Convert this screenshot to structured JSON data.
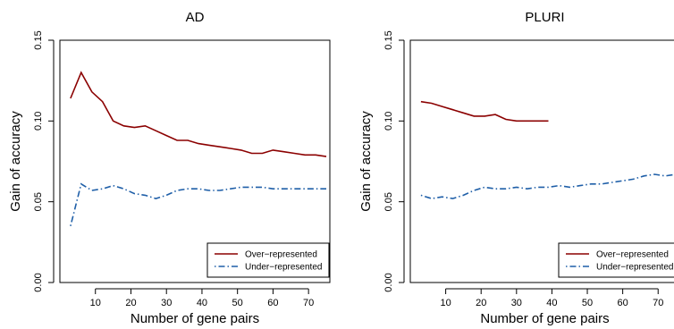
{
  "chart_data": [
    {
      "type": "line",
      "title": "AD",
      "xlabel": "Number of gene pairs",
      "ylabel": "Gain of accuracy",
      "xlim": [
        0,
        76
      ],
      "ylim": [
        0,
        0.15
      ],
      "xticks": [
        10,
        20,
        30,
        40,
        50,
        60,
        70
      ],
      "yticks": [
        0.0,
        0.05,
        0.1,
        0.15
      ],
      "ytick_labels": [
        "0.00",
        "0.05",
        "0.10",
        "0.15"
      ],
      "grid": false,
      "legend": "bottom-right",
      "series": [
        {
          "name": "Over−represented",
          "color": "#8b0000",
          "style": "solid",
          "x": [
            3,
            6,
            9,
            12,
            15,
            18,
            21,
            24,
            27,
            30,
            33,
            36,
            39,
            42,
            45,
            48,
            51,
            54,
            57,
            60,
            63,
            66,
            69,
            72,
            75
          ],
          "y": [
            0.114,
            0.13,
            0.118,
            0.112,
            0.1,
            0.097,
            0.096,
            0.097,
            0.094,
            0.091,
            0.088,
            0.088,
            0.086,
            0.085,
            0.084,
            0.083,
            0.082,
            0.08,
            0.08,
            0.082,
            0.081,
            0.08,
            0.079,
            0.079,
            0.078
          ]
        },
        {
          "name": "Under−represented",
          "color": "#1f5fa8",
          "style": "dotdash",
          "x": [
            3,
            6,
            9,
            12,
            15,
            18,
            21,
            24,
            27,
            30,
            33,
            36,
            39,
            42,
            45,
            48,
            51,
            54,
            57,
            60,
            63,
            66,
            69,
            72,
            75
          ],
          "y": [
            0.035,
            0.061,
            0.057,
            0.058,
            0.06,
            0.058,
            0.055,
            0.054,
            0.052,
            0.054,
            0.057,
            0.058,
            0.058,
            0.057,
            0.057,
            0.058,
            0.059,
            0.059,
            0.059,
            0.058,
            0.058,
            0.058,
            0.058,
            0.058,
            0.058
          ]
        }
      ]
    },
    {
      "type": "line",
      "title": "PLURI",
      "xlabel": "Number of gene pairs",
      "ylabel": "Gain of accuracy",
      "xlim": [
        0,
        76
      ],
      "ylim": [
        0,
        0.15
      ],
      "xticks": [
        10,
        20,
        30,
        40,
        50,
        60,
        70
      ],
      "yticks": [
        0.0,
        0.05,
        0.1,
        0.15
      ],
      "ytick_labels": [
        "0.00",
        "0.05",
        "0.10",
        "0.15"
      ],
      "grid": false,
      "legend": "bottom-right",
      "series": [
        {
          "name": "Over−represented",
          "color": "#8b0000",
          "style": "solid",
          "x": [
            3,
            6,
            9,
            12,
            15,
            18,
            21,
            24,
            27,
            30,
            33,
            36,
            39
          ],
          "y": [
            0.112,
            0.111,
            0.109,
            0.107,
            0.105,
            0.103,
            0.103,
            0.104,
            0.101,
            0.1,
            0.1,
            0.1,
            0.1
          ]
        },
        {
          "name": "Under−represented",
          "color": "#1f5fa8",
          "style": "dotdash",
          "x": [
            3,
            6,
            9,
            12,
            15,
            18,
            21,
            24,
            27,
            30,
            33,
            36,
            39,
            42,
            45,
            48,
            51,
            54,
            57,
            60,
            63,
            66,
            69,
            72,
            75
          ],
          "y": [
            0.054,
            0.052,
            0.053,
            0.052,
            0.054,
            0.057,
            0.059,
            0.058,
            0.058,
            0.059,
            0.058,
            0.059,
            0.059,
            0.06,
            0.059,
            0.06,
            0.061,
            0.061,
            0.062,
            0.063,
            0.064,
            0.066,
            0.067,
            0.066,
            0.067
          ]
        }
      ]
    }
  ]
}
